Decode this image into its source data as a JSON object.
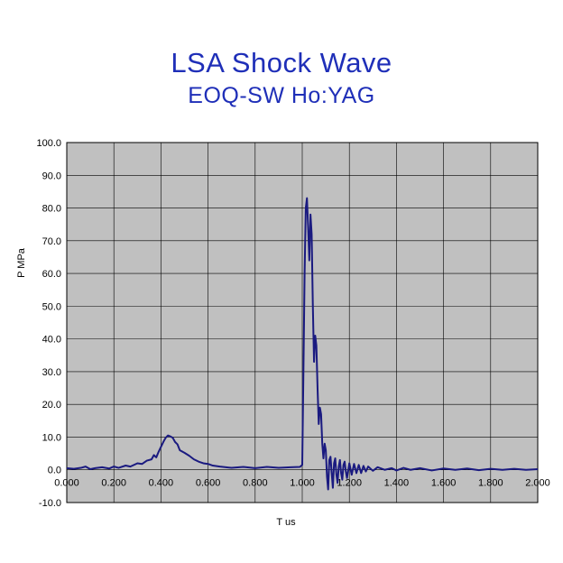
{
  "chart_data": {
    "type": "line",
    "title": "LSA Shock Wave",
    "subtitle": "EOQ-SW Ho:YAG",
    "xlabel": "T us",
    "ylabel": "P MPa",
    "xlim": [
      0.0,
      2.0
    ],
    "ylim": [
      -10.0,
      100.0
    ],
    "x_ticks": [
      "0.000",
      "0.200",
      "0.400",
      "0.600",
      "0.800",
      "1.000",
      "1.200",
      "1.400",
      "1.600",
      "1.800",
      "2.000"
    ],
    "y_ticks": [
      "100.0",
      "90.0",
      "80.0",
      "70.0",
      "60.0",
      "50.0",
      "40.0",
      "30.0",
      "20.0",
      "10.0",
      "0.0",
      "-10.0"
    ],
    "grid": true,
    "plot_background": "#c0c0c0",
    "series": [
      {
        "color": "#1a1a80",
        "points": [
          [
            0.0,
            0.5
          ],
          [
            0.03,
            0.3
          ],
          [
            0.06,
            0.6
          ],
          [
            0.08,
            1.0
          ],
          [
            0.1,
            0.2
          ],
          [
            0.12,
            0.5
          ],
          [
            0.15,
            0.8
          ],
          [
            0.18,
            0.4
          ],
          [
            0.2,
            1.0
          ],
          [
            0.22,
            0.6
          ],
          [
            0.25,
            1.3
          ],
          [
            0.27,
            1.0
          ],
          [
            0.3,
            2.0
          ],
          [
            0.32,
            1.8
          ],
          [
            0.34,
            2.8
          ],
          [
            0.36,
            3.2
          ],
          [
            0.37,
            4.5
          ],
          [
            0.38,
            3.8
          ],
          [
            0.39,
            5.5
          ],
          [
            0.4,
            7.0
          ],
          [
            0.41,
            8.5
          ],
          [
            0.42,
            9.8
          ],
          [
            0.43,
            10.5
          ],
          [
            0.44,
            10.2
          ],
          [
            0.45,
            9.8
          ],
          [
            0.46,
            8.5
          ],
          [
            0.47,
            7.8
          ],
          [
            0.48,
            6.0
          ],
          [
            0.5,
            5.2
          ],
          [
            0.52,
            4.3
          ],
          [
            0.54,
            3.2
          ],
          [
            0.56,
            2.5
          ],
          [
            0.58,
            2.0
          ],
          [
            0.6,
            1.8
          ],
          [
            0.62,
            1.3
          ],
          [
            0.65,
            1.0
          ],
          [
            0.7,
            0.6
          ],
          [
            0.75,
            0.9
          ],
          [
            0.8,
            0.5
          ],
          [
            0.85,
            0.9
          ],
          [
            0.9,
            0.6
          ],
          [
            0.95,
            0.8
          ],
          [
            0.99,
            0.9
          ],
          [
            1.0,
            1.5
          ],
          [
            1.005,
            30.0
          ],
          [
            1.01,
            60.0
          ],
          [
            1.015,
            80.0
          ],
          [
            1.02,
            83.0
          ],
          [
            1.025,
            74.0
          ],
          [
            1.03,
            64.0
          ],
          [
            1.035,
            78.0
          ],
          [
            1.04,
            72.0
          ],
          [
            1.045,
            50.0
          ],
          [
            1.05,
            33.0
          ],
          [
            1.055,
            41.0
          ],
          [
            1.06,
            38.0
          ],
          [
            1.065,
            25.0
          ],
          [
            1.07,
            14.0
          ],
          [
            1.075,
            19.0
          ],
          [
            1.08,
            17.0
          ],
          [
            1.085,
            8.0
          ],
          [
            1.09,
            3.5
          ],
          [
            1.095,
            8.0
          ],
          [
            1.1,
            6.0
          ],
          [
            1.105,
            -2.0
          ],
          [
            1.11,
            -6.0
          ],
          [
            1.115,
            3.0
          ],
          [
            1.12,
            4.0
          ],
          [
            1.125,
            -1.0
          ],
          [
            1.13,
            -5.5
          ],
          [
            1.135,
            2.0
          ],
          [
            1.14,
            3.5
          ],
          [
            1.145,
            -1.5
          ],
          [
            1.15,
            -4.0
          ],
          [
            1.155,
            1.0
          ],
          [
            1.16,
            3.0
          ],
          [
            1.165,
            -1.0
          ],
          [
            1.17,
            -3.0
          ],
          [
            1.175,
            1.5
          ],
          [
            1.18,
            2.5
          ],
          [
            1.185,
            -0.5
          ],
          [
            1.19,
            -2.5
          ],
          [
            1.2,
            2.0
          ],
          [
            1.21,
            -1.5
          ],
          [
            1.22,
            1.8
          ],
          [
            1.23,
            -1.0
          ],
          [
            1.24,
            1.5
          ],
          [
            1.25,
            -1.0
          ],
          [
            1.26,
            1.2
          ],
          [
            1.27,
            -0.5
          ],
          [
            1.28,
            1.0
          ],
          [
            1.3,
            -0.3
          ],
          [
            1.32,
            0.8
          ],
          [
            1.35,
            0.0
          ],
          [
            1.38,
            0.5
          ],
          [
            1.4,
            -0.2
          ],
          [
            1.43,
            0.6
          ],
          [
            1.46,
            0.0
          ],
          [
            1.5,
            0.5
          ],
          [
            1.55,
            -0.2
          ],
          [
            1.6,
            0.4
          ],
          [
            1.65,
            0.0
          ],
          [
            1.7,
            0.4
          ],
          [
            1.75,
            -0.1
          ],
          [
            1.8,
            0.3
          ],
          [
            1.85,
            0.0
          ],
          [
            1.9,
            0.3
          ],
          [
            1.95,
            0.0
          ],
          [
            2.0,
            0.2
          ]
        ]
      }
    ]
  }
}
